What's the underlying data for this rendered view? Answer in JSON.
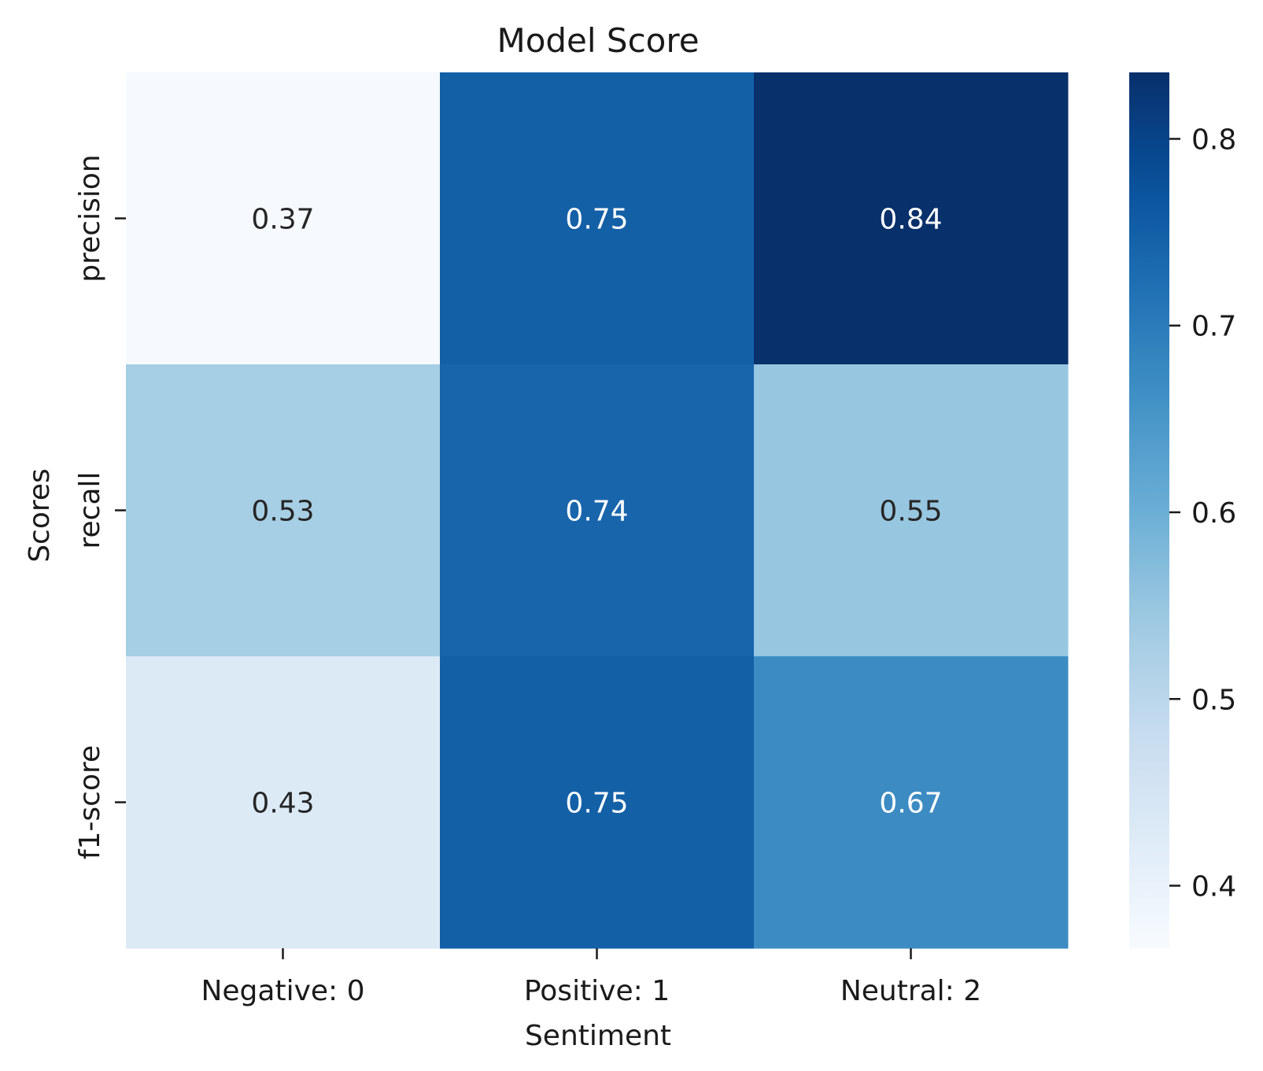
{
  "chart_data": {
    "type": "heatmap",
    "title": "Model Score",
    "xlabel": "Sentiment",
    "ylabel": "Scores",
    "x_categories": [
      "Negative: 0",
      "Positive: 1",
      "Neutral: 2"
    ],
    "y_categories": [
      "precision",
      "recall",
      "f1-score"
    ],
    "values": [
      [
        0.37,
        0.75,
        0.84
      ],
      [
        0.53,
        0.74,
        0.55
      ],
      [
        0.43,
        0.75,
        0.67
      ]
    ],
    "value_labels": [
      [
        "0.37",
        "0.75",
        "0.84"
      ],
      [
        "0.53",
        "0.74",
        "0.55"
      ],
      [
        "0.43",
        "0.75",
        "0.67"
      ]
    ],
    "colormap": "Blues",
    "colorbar": {
      "vmin": 0.3665,
      "vmax": 0.8356,
      "ticks": [
        0.4,
        0.5,
        0.6,
        0.7,
        0.8
      ],
      "tick_labels": [
        "0.4",
        "0.5",
        "0.6",
        "0.7",
        "0.8"
      ]
    },
    "colors": {
      "light_text": "#ffffff",
      "dark_text": "#262626"
    }
  }
}
